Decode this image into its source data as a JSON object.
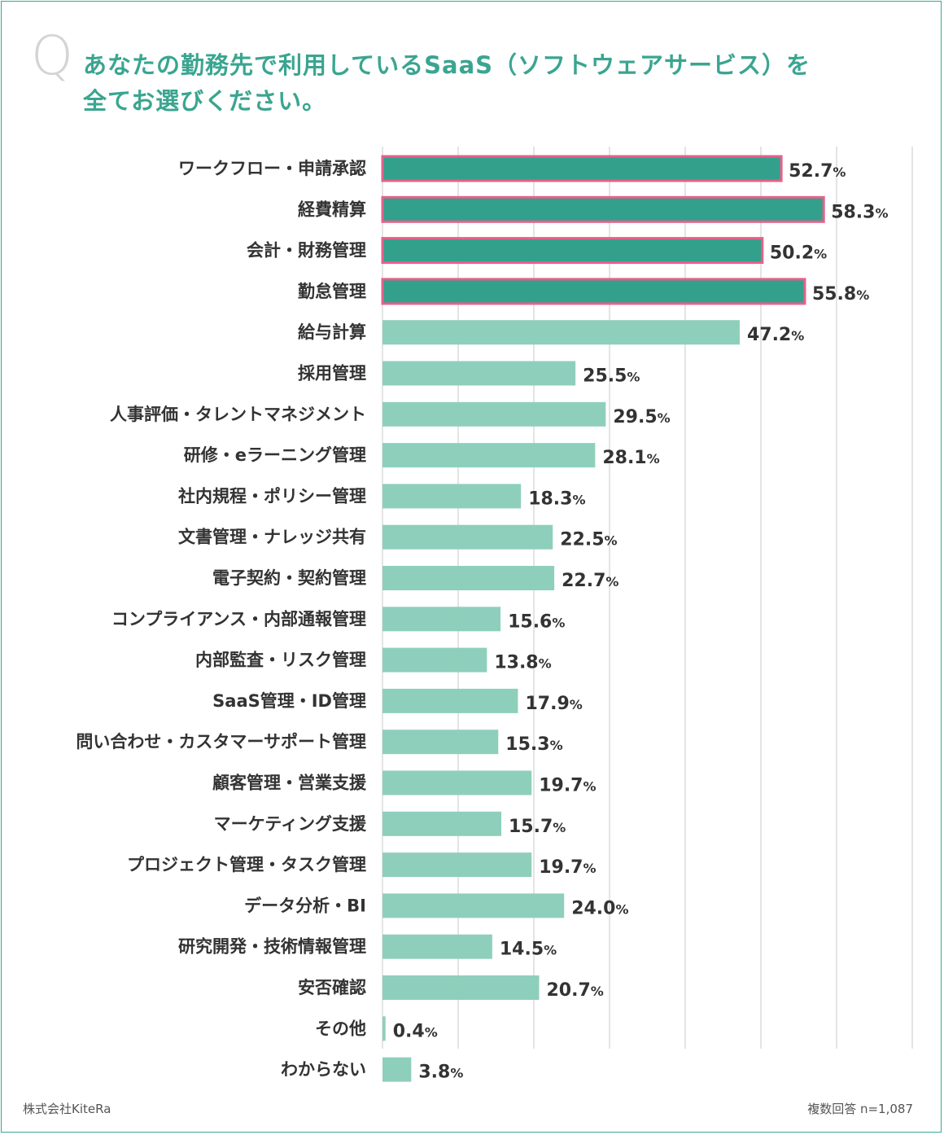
{
  "question": {
    "q_mark": "Q",
    "title_line1": "あなたの勤務先で利用しているSaaS（ソフトウェアサービス）を",
    "title_line2": "全てお選びください。"
  },
  "footer": {
    "company": "株式会社KiteRa",
    "note": "複数回答 n=1,087"
  },
  "colors": {
    "accent": "#3aa590",
    "bar_highlight": "#33a08c",
    "bar_normal": "#8ecfbc",
    "highlight_border": "#e8608a"
  },
  "chart_data": {
    "type": "bar",
    "orientation": "horizontal",
    "unit": "%",
    "xlim": [
      0,
      70
    ],
    "grid": true,
    "categories": [
      "ワークフロー・申請承認",
      "経費精算",
      "会計・財務管理",
      "勤怠管理",
      "給与計算",
      "採用管理",
      "人事評価・タレントマネジメント",
      "研修・eラーニング管理",
      "社内規程・ポリシー管理",
      "文書管理・ナレッジ共有",
      "電子契約・契約管理",
      "コンプライアンス・内部通報管理",
      "内部監査・リスク管理",
      "SaaS管理・ID管理",
      "問い合わせ・カスタマーサポート管理",
      "顧客管理・営業支援",
      "マーケティング支援",
      "プロジェクト管理・タスク管理",
      "データ分析・BI",
      "研究開発・技術情報管理",
      "安否確認",
      "その他",
      "わからない"
    ],
    "values": [
      52.7,
      58.3,
      50.2,
      55.8,
      47.2,
      25.5,
      29.5,
      28.1,
      18.3,
      22.5,
      22.7,
      15.6,
      13.8,
      17.9,
      15.3,
      19.7,
      15.7,
      19.7,
      24.0,
      14.5,
      20.7,
      0.4,
      3.8
    ],
    "value_labels": [
      "52.7",
      "58.3",
      "50.2",
      "55.8",
      "47.2",
      "25.5",
      "29.5",
      "28.1",
      "18.3",
      "22.5",
      "22.7",
      "15.6",
      "13.8",
      "17.9",
      "15.3",
      "19.7",
      "15.7",
      "19.7",
      "24.0",
      "14.5",
      "20.7",
      "0.4",
      "3.8"
    ],
    "highlighted": [
      true,
      true,
      true,
      true,
      false,
      false,
      false,
      false,
      false,
      false,
      false,
      false,
      false,
      false,
      false,
      false,
      false,
      false,
      false,
      false,
      false,
      false,
      false
    ]
  }
}
